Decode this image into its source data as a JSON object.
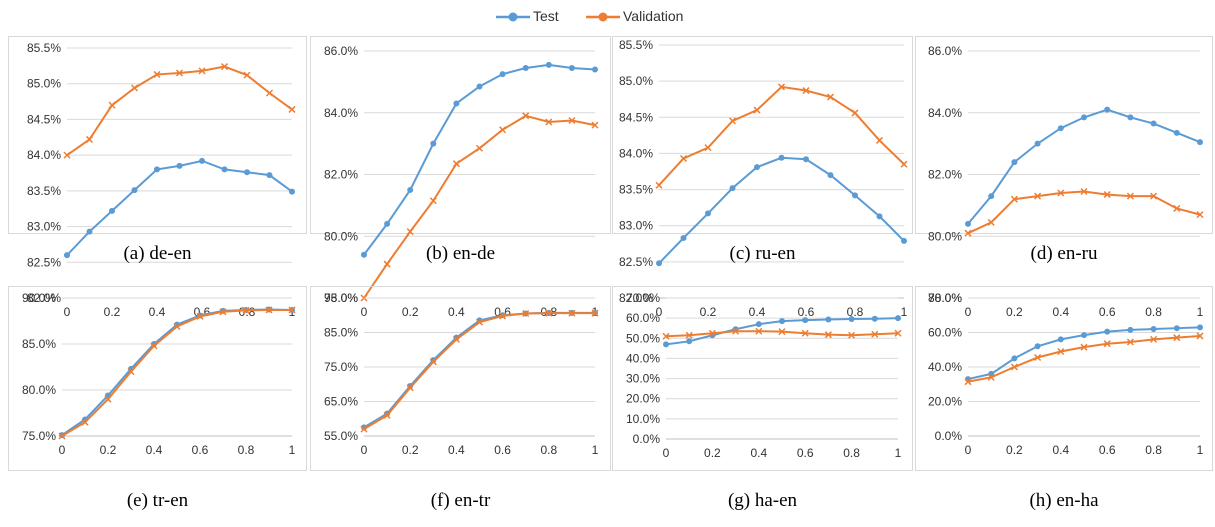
{
  "legend": {
    "items": [
      {
        "label": "Test",
        "color": "#5B9BD5",
        "marker": "circle"
      },
      {
        "label": "Validation",
        "color": "#ED7D31",
        "marker": "x"
      }
    ]
  },
  "chart_data": [
    {
      "type": "line",
      "caption": "(a) de-en",
      "x": [
        0,
        0.1,
        0.2,
        0.3,
        0.4,
        0.5,
        0.6,
        0.7,
        0.8,
        0.9,
        1
      ],
      "xticks": [
        0,
        0.2,
        0.4,
        0.6,
        0.8,
        1
      ],
      "xtick_labels": [
        "0",
        "0.2",
        "0.4",
        "0.6",
        "0.8",
        "1"
      ],
      "ylim": [
        82.0,
        85.5
      ],
      "yticks": [
        82.0,
        82.5,
        83.0,
        83.5,
        84.0,
        84.5,
        85.0,
        85.5
      ],
      "ytick_labels": [
        "82.0%",
        "82.5%",
        "83.0%",
        "83.5%",
        "84.0%",
        "84.5%",
        "85.0%",
        "85.5%"
      ],
      "series": [
        {
          "name": "Test",
          "values": [
            82.6,
            82.93,
            83.22,
            83.51,
            83.8,
            83.85,
            83.92,
            83.8,
            83.76,
            83.72,
            83.49
          ]
        },
        {
          "name": "Validation",
          "values": [
            84.0,
            84.22,
            84.7,
            84.94,
            85.13,
            85.15,
            85.18,
            85.24,
            85.12,
            84.87,
            84.64
          ]
        }
      ]
    },
    {
      "type": "line",
      "caption": "(b) en-de",
      "x": [
        0,
        0.1,
        0.2,
        0.3,
        0.4,
        0.5,
        0.6,
        0.7,
        0.8,
        0.9,
        1
      ],
      "xticks": [
        0,
        0.2,
        0.4,
        0.6,
        0.8,
        1
      ],
      "xtick_labels": [
        "0",
        "0.2",
        "0.4",
        "0.6",
        "0.8",
        "1"
      ],
      "ylim": [
        78.0,
        86.0
      ],
      "yticks": [
        78.0,
        80.0,
        82.0,
        84.0,
        86.0
      ],
      "ytick_labels": [
        "78.0%",
        "80.0%",
        "82.0%",
        "84.0%",
        "86.0%"
      ],
      "series": [
        {
          "name": "Test",
          "values": [
            79.4,
            80.4,
            81.5,
            83.0,
            84.3,
            84.85,
            85.25,
            85.45,
            85.55,
            85.45,
            85.4
          ]
        },
        {
          "name": "Validation",
          "values": [
            78.0,
            79.1,
            80.15,
            81.15,
            82.35,
            82.85,
            83.45,
            83.9,
            83.7,
            83.75,
            83.6
          ]
        }
      ]
    },
    {
      "type": "line",
      "caption": "(c) ru-en",
      "x": [
        0,
        0.1,
        0.2,
        0.3,
        0.4,
        0.5,
        0.6,
        0.7,
        0.8,
        0.9,
        1
      ],
      "xticks": [
        0,
        0.2,
        0.4,
        0.6,
        0.8,
        1
      ],
      "xtick_labels": [
        "0",
        "0.2",
        "0.4",
        "0.6",
        "0.8",
        "1"
      ],
      "ylim": [
        82.0,
        85.5
      ],
      "yticks": [
        82.0,
        82.5,
        83.0,
        83.5,
        84.0,
        84.5,
        85.0,
        85.5
      ],
      "ytick_labels": [
        "82.0%",
        "82.5%",
        "83.0%",
        "83.5%",
        "84.0%",
        "84.5%",
        "85.0%",
        "85.5%"
      ],
      "series": [
        {
          "name": "Test",
          "values": [
            82.48,
            82.83,
            83.17,
            83.52,
            83.81,
            83.94,
            83.92,
            83.7,
            83.42,
            83.13,
            82.79
          ]
        },
        {
          "name": "Validation",
          "values": [
            83.56,
            83.93,
            84.08,
            84.45,
            84.6,
            84.92,
            84.87,
            84.78,
            84.56,
            84.18,
            83.85
          ]
        }
      ]
    },
    {
      "type": "line",
      "caption": "(d) en-ru",
      "x": [
        0,
        0.1,
        0.2,
        0.3,
        0.4,
        0.5,
        0.6,
        0.7,
        0.8,
        0.9,
        1
      ],
      "xticks": [
        0,
        0.2,
        0.4,
        0.6,
        0.8,
        1
      ],
      "xtick_labels": [
        "0",
        "0.2",
        "0.4",
        "0.6",
        "0.8",
        "1"
      ],
      "ylim": [
        78.0,
        86.0
      ],
      "yticks": [
        78.0,
        80.0,
        82.0,
        84.0,
        86.0
      ],
      "ytick_labels": [
        "78.0%",
        "80.0%",
        "82.0%",
        "84.0%",
        "86.0%"
      ],
      "series": [
        {
          "name": "Test",
          "values": [
            80.4,
            81.3,
            82.4,
            83.0,
            83.5,
            83.85,
            84.1,
            83.85,
            83.65,
            83.35,
            83.05
          ]
        },
        {
          "name": "Validation",
          "values": [
            80.1,
            80.45,
            81.2,
            81.3,
            81.4,
            81.45,
            81.35,
            81.3,
            81.3,
            80.9,
            80.7
          ]
        }
      ]
    },
    {
      "type": "line",
      "caption": "(e) tr-en",
      "x": [
        0,
        0.1,
        0.2,
        0.3,
        0.4,
        0.5,
        0.6,
        0.7,
        0.8,
        0.9,
        1
      ],
      "xticks": [
        0,
        0.2,
        0.4,
        0.6,
        0.8,
        1
      ],
      "xtick_labels": [
        "0",
        "0.2",
        "0.4",
        "0.6",
        "0.8",
        "1"
      ],
      "ylim": [
        75.0,
        90.0
      ],
      "yticks": [
        75.0,
        80.0,
        85.0,
        90.0
      ],
      "ytick_labels": [
        "75.0%",
        "80.0%",
        "85.0%",
        "90.0%"
      ],
      "series": [
        {
          "name": "Test",
          "values": [
            75.1,
            76.8,
            79.4,
            82.3,
            85.0,
            87.1,
            88.1,
            88.6,
            88.7,
            88.75,
            88.7
          ]
        },
        {
          "name": "Validation",
          "values": [
            75.0,
            76.5,
            79.0,
            82.0,
            84.8,
            86.9,
            88.0,
            88.5,
            88.65,
            88.7,
            88.7
          ]
        }
      ]
    },
    {
      "type": "line",
      "caption": "(f) en-tr",
      "x": [
        0,
        0.1,
        0.2,
        0.3,
        0.4,
        0.5,
        0.6,
        0.7,
        0.8,
        0.9,
        1
      ],
      "xticks": [
        0,
        0.2,
        0.4,
        0.6,
        0.8,
        1
      ],
      "xtick_labels": [
        "0",
        "0.2",
        "0.4",
        "0.6",
        "0.8",
        "1"
      ],
      "ylim": [
        55.0,
        95.0
      ],
      "yticks": [
        55.0,
        65.0,
        75.0,
        85.0,
        95.0
      ],
      "ytick_labels": [
        "55.0%",
        "65.0%",
        "75.0%",
        "85.0%",
        "95.0%"
      ],
      "series": [
        {
          "name": "Test",
          "values": [
            57.5,
            61.5,
            69.5,
            77.0,
            83.5,
            88.5,
            90.0,
            90.5,
            90.7,
            90.7,
            90.7
          ]
        },
        {
          "name": "Validation",
          "values": [
            57.0,
            61.0,
            69.0,
            76.5,
            83.0,
            88.0,
            89.8,
            90.5,
            90.6,
            90.6,
            90.6
          ]
        }
      ]
    },
    {
      "type": "line",
      "caption": "(g) ha-en",
      "x": [
        0,
        0.1,
        0.2,
        0.3,
        0.4,
        0.5,
        0.6,
        0.7,
        0.8,
        0.9,
        1
      ],
      "xticks": [
        0,
        0.2,
        0.4,
        0.6,
        0.8,
        1
      ],
      "xtick_labels": [
        "0",
        "0.2",
        "0.4",
        "0.6",
        "0.8",
        "1"
      ],
      "ylim": [
        0.0,
        70.0
      ],
      "yticks": [
        0.0,
        10.0,
        20.0,
        30.0,
        40.0,
        50.0,
        60.0,
        70.0
      ],
      "ytick_labels": [
        "0.0%",
        "10.0%",
        "20.0%",
        "30.0%",
        "40.0%",
        "50.0%",
        "60.0%",
        "70.0%"
      ],
      "series": [
        {
          "name": "Test",
          "values": [
            47.0,
            48.5,
            51.5,
            54.5,
            57.0,
            58.5,
            59.0,
            59.3,
            59.6,
            59.7,
            60.0
          ]
        },
        {
          "name": "Validation",
          "values": [
            51.0,
            51.5,
            52.5,
            53.5,
            53.5,
            53.3,
            52.5,
            51.8,
            51.5,
            52.0,
            52.5
          ]
        }
      ]
    },
    {
      "type": "line",
      "caption": "(h) en-ha",
      "x": [
        0,
        0.1,
        0.2,
        0.3,
        0.4,
        0.5,
        0.6,
        0.7,
        0.8,
        0.9,
        1
      ],
      "xticks": [
        0,
        0.2,
        0.4,
        0.6,
        0.8,
        1
      ],
      "xtick_labels": [
        "0",
        "0.2",
        "0.4",
        "0.6",
        "0.8",
        "1"
      ],
      "ylim": [
        0.0,
        80.0
      ],
      "yticks": [
        0.0,
        20.0,
        40.0,
        60.0,
        80.0
      ],
      "ytick_labels": [
        "0.0%",
        "20.0%",
        "40.0%",
        "60.0%",
        "80.0%"
      ],
      "series": [
        {
          "name": "Test",
          "values": [
            33.0,
            36.0,
            45.0,
            52.0,
            56.0,
            58.5,
            60.5,
            61.5,
            62.0,
            62.5,
            63.0
          ]
        },
        {
          "name": "Validation",
          "values": [
            31.5,
            34.0,
            40.0,
            45.5,
            49.0,
            51.5,
            53.5,
            54.5,
            56.0,
            57.0,
            58.0
          ]
        }
      ]
    }
  ]
}
